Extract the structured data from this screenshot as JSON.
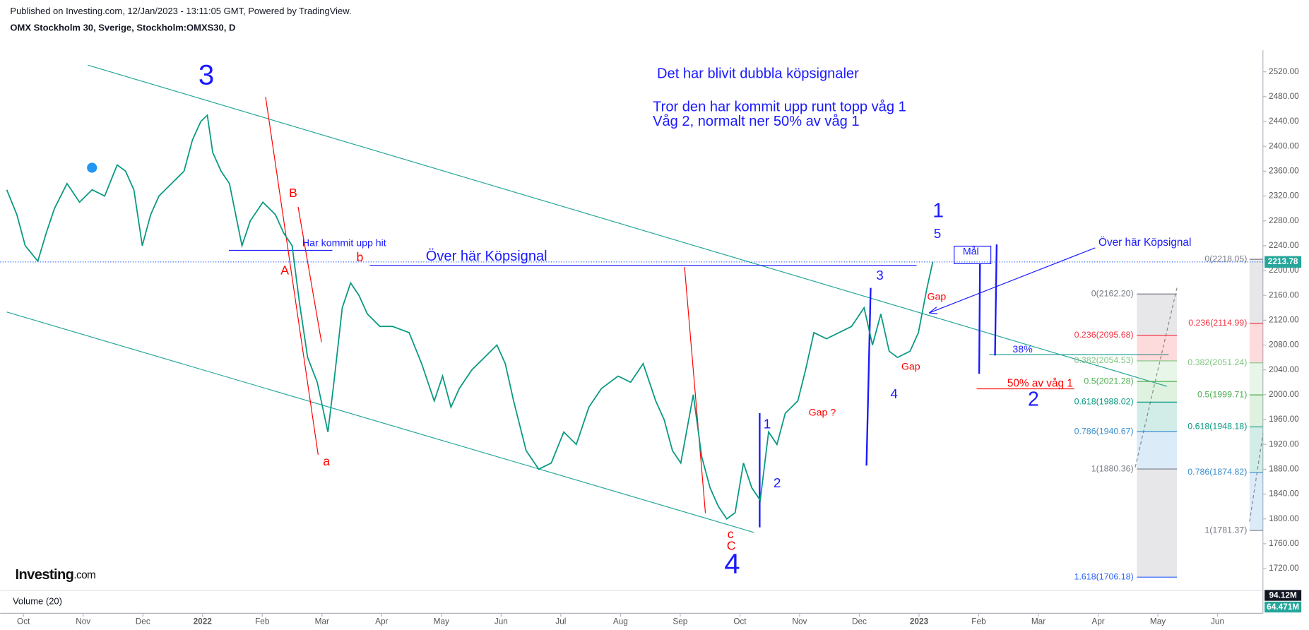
{
  "header": {
    "published": "Published on Investing.com, 12/Jan/2023 - 13:11:05 GMT, Powered by TradingView.",
    "symbol": "OMX Stockholm 30, Sverige, Stockholm:OMXS30, D"
  },
  "logo": {
    "brand": "Investing",
    "suffix": ".com"
  },
  "chart_data": {
    "type": "line",
    "series": [
      {
        "name": "OMXS30",
        "color": "#089981",
        "x": [
          -0.28,
          -0.11,
          0.03,
          0.24,
          0.38,
          0.52,
          0.73,
          0.94,
          1.15,
          1.36,
          1.57,
          1.71,
          1.85,
          1.99,
          2.13,
          2.27,
          2.48,
          2.69,
          2.83,
          2.97,
          3.08,
          3.17,
          3.31,
          3.45,
          3.66,
          3.8,
          4.01,
          4.22,
          4.36,
          4.5,
          4.62,
          4.76,
          4.92,
          5.1,
          5.2,
          5.34,
          5.48,
          5.62,
          5.76,
          5.97,
          6.18,
          6.46,
          6.67,
          6.88,
          7.02,
          7.16,
          7.3,
          7.51,
          7.72,
          7.93,
          8.07,
          8.21,
          8.42,
          8.63,
          8.84,
          9.05,
          9.26,
          9.47,
          9.68,
          9.96,
          10.17,
          10.38,
          10.59,
          10.73,
          10.87,
          11.01,
          11.22,
          11.36,
          11.5,
          11.64,
          11.78,
          11.92,
          12.06,
          12.2,
          12.34,
          12.48,
          12.62,
          12.76,
          12.97,
          13.1,
          13.24,
          13.45,
          13.66,
          13.87,
          14.08,
          14.22,
          14.36,
          14.5,
          14.64,
          14.85,
          14.99,
          15.13,
          15.23
        ],
        "values": [
          2330,
          2290,
          2240,
          2215,
          2260,
          2300,
          2340,
          2310,
          2330,
          2320,
          2370,
          2360,
          2330,
          2240,
          2290,
          2320,
          2340,
          2360,
          2410,
          2440,
          2450,
          2390,
          2360,
          2340,
          2240,
          2280,
          2310,
          2290,
          2260,
          2240,
          2150,
          2060,
          2020,
          1940,
          2020,
          2140,
          2180,
          2160,
          2130,
          2110,
          2110,
          2100,
          2050,
          1990,
          2030,
          1980,
          2010,
          2040,
          2060,
          2080,
          2050,
          1990,
          1910,
          1880,
          1890,
          1940,
          1920,
          1980,
          2010,
          2030,
          2020,
          2050,
          1990,
          1960,
          1910,
          1890,
          2000,
          1900,
          1850,
          1820,
          1800,
          1810,
          1890,
          1850,
          1830,
          1940,
          1920,
          1970,
          1990,
          2040,
          2100,
          2090,
          2100,
          2110,
          2140,
          2080,
          2130,
          2070,
          2060,
          2070,
          2100,
          2170,
          2213.78
        ]
      }
    ],
    "last_price": 2213.78,
    "ylim": [
      1695,
      2555
    ],
    "yticks": [
      {
        "value": 2520,
        "label": "2520.00"
      },
      {
        "value": 2480,
        "label": "2480.00"
      },
      {
        "value": 2440,
        "label": "2440.00"
      },
      {
        "value": 2400,
        "label": "2400.00"
      },
      {
        "value": 2360,
        "label": "2360.00"
      },
      {
        "value": 2320,
        "label": "2320.00"
      },
      {
        "value": 2280,
        "label": "2280.00"
      },
      {
        "value": 2240,
        "label": "2240.00"
      },
      {
        "value": 2200,
        "label": "2200.00"
      },
      {
        "value": 2160,
        "label": "2160.00"
      },
      {
        "value": 2120,
        "label": "2120.00"
      },
      {
        "value": 2080,
        "label": "2080.00"
      },
      {
        "value": 2040,
        "label": "2040.00"
      },
      {
        "value": 2000,
        "label": "2000.00"
      },
      {
        "value": 1960,
        "label": "1960.00"
      },
      {
        "value": 1920,
        "label": "1920.00"
      },
      {
        "value": 1880,
        "label": "1880.00"
      },
      {
        "value": 1840,
        "label": "1840.00"
      },
      {
        "value": 1800,
        "label": "1800.00"
      },
      {
        "value": 1760,
        "label": "1760.00"
      },
      {
        "value": 1720,
        "label": "1720.00"
      }
    ],
    "xlim": [
      -0.39,
      20.76
    ],
    "xticks": [
      {
        "value": 0,
        "label": "Oct"
      },
      {
        "value": 1,
        "label": "Nov"
      },
      {
        "value": 2,
        "label": "Dec"
      },
      {
        "value": 3,
        "label": "2022"
      },
      {
        "value": 4,
        "label": "Feb"
      },
      {
        "value": 5,
        "label": "Mar"
      },
      {
        "value": 6,
        "label": "Apr"
      },
      {
        "value": 7,
        "label": "May"
      },
      {
        "value": 8,
        "label": "Jun"
      },
      {
        "value": 9,
        "label": "Jul"
      },
      {
        "value": 10,
        "label": "Aug"
      },
      {
        "value": 11,
        "label": "Sep"
      },
      {
        "value": 12,
        "label": "Oct"
      },
      {
        "value": 13,
        "label": "Nov"
      },
      {
        "value": 14,
        "label": "Dec"
      },
      {
        "value": 15,
        "label": "2023"
      },
      {
        "value": 16,
        "label": "Feb"
      },
      {
        "value": 17,
        "label": "Mar"
      },
      {
        "value": 18,
        "label": "Apr"
      },
      {
        "value": 19,
        "label": "May"
      },
      {
        "value": 20,
        "label": "Jun"
      }
    ],
    "fib_left": [
      {
        "value": 2162.2,
        "label": "0(2162.20)",
        "color": "#787b86"
      },
      {
        "value": 2095.68,
        "label": "0.236(2095.68)",
        "color": "#f23645"
      },
      {
        "value": 2054.53,
        "label": "0.382(2054.53)",
        "color": "#81c784"
      },
      {
        "value": 2021.28,
        "label": "0.5(2021.28)",
        "color": "#4caf50"
      },
      {
        "value": 1988.02,
        "label": "0.618(1988.02)",
        "color": "#089981"
      },
      {
        "value": 1940.67,
        "label": "0.786(1940.67)",
        "color": "#3a8fd0"
      },
      {
        "value": 1880.36,
        "label": "1(1880.36)",
        "color": "#787b86"
      },
      {
        "value": 1706.18,
        "label": "1.618(1706.18)",
        "color": "#2962ff"
      }
    ],
    "fib_right": [
      {
        "value": 2218.05,
        "label": "0(2218.05)",
        "color": "#787b86"
      },
      {
        "value": 2114.99,
        "label": "0.236(2114.99)",
        "color": "#f23645"
      },
      {
        "value": 2051.24,
        "label": "0.382(2051.24)",
        "color": "#81c784"
      },
      {
        "value": 1999.71,
        "label": "0.5(1999.71)",
        "color": "#4caf50"
      },
      {
        "value": 1948.18,
        "label": "0.618(1948.18)",
        "color": "#089981"
      },
      {
        "value": 1874.82,
        "label": "0.786(1874.82)",
        "color": "#3a8fd0"
      },
      {
        "value": 1781.37,
        "label": "1(1781.37)",
        "color": "#787b86"
      }
    ],
    "annotations": [
      {
        "text": "3",
        "color": "#1a1aff"
      },
      {
        "text": "Det har blivit dubbla köpsignaler",
        "color": "#1a1aff"
      },
      {
        "text": "Tror den har kommit upp runt topp våg 1",
        "color": "#1a1aff"
      },
      {
        "text": "Våg 2, normalt ner 50% av våg 1",
        "color": "#1a1aff"
      },
      {
        "text": "B",
        "color": "#f00"
      },
      {
        "text": "A",
        "color": "#f00"
      },
      {
        "text": "a",
        "color": "#f00"
      },
      {
        "text": "b",
        "color": "#f00"
      },
      {
        "text": "Har kommit upp hit",
        "color": "#1a1aff"
      },
      {
        "text": "Över här Köpsignal",
        "color": "#1a1aff"
      },
      {
        "text": "1",
        "color": "#1a1aff"
      },
      {
        "text": "5",
        "color": "#1a1aff"
      },
      {
        "text": "Mål",
        "color": "#1a1aff"
      },
      {
        "text": "Över här Köpsignal",
        "color": "#1a1aff"
      },
      {
        "text": "3",
        "color": "#1a1aff"
      },
      {
        "text": "Gap",
        "color": "#f00"
      },
      {
        "text": "Gap",
        "color": "#f00"
      },
      {
        "text": "38%",
        "color": "#1a1aff"
      },
      {
        "text": "4",
        "color": "#1a1aff"
      },
      {
        "text": "50% av våg 1",
        "color": "#f00"
      },
      {
        "text": "2",
        "color": "#1a1aff"
      },
      {
        "text": "1",
        "color": "#1a1aff"
      },
      {
        "text": "Gap ?",
        "color": "#f00"
      },
      {
        "text": "2",
        "color": "#1a1aff"
      },
      {
        "text": "c",
        "color": "#f00"
      },
      {
        "text": "C",
        "color": "#f00"
      },
      {
        "text": "4",
        "color": "#1a1aff"
      }
    ],
    "volume": {
      "title": "Volume (20)",
      "label_max": "94.12M",
      "label_last": "64.471M"
    }
  }
}
